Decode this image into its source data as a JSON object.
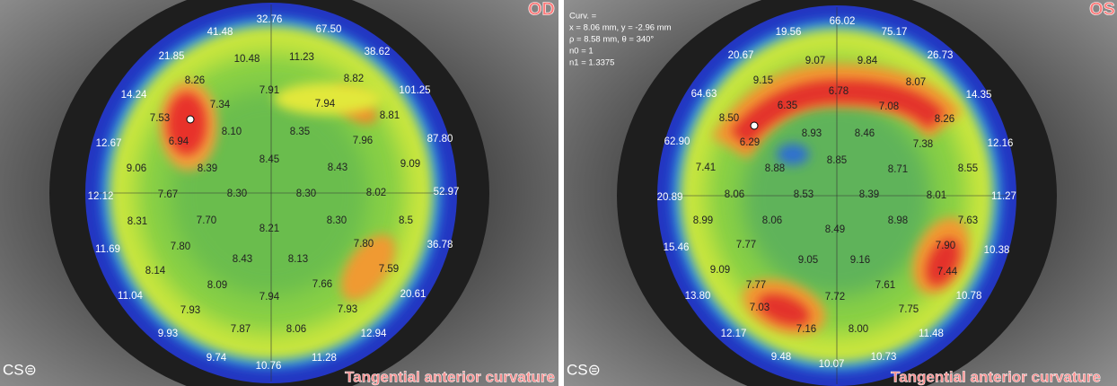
{
  "panels": [
    {
      "eye": "OD",
      "caption": "Tangential anterior curvature",
      "logo": "CS⊜",
      "values": [
        "32.76",
        "67.50",
        "41.48",
        "38.62",
        "21.85",
        "101.25",
        "14.24",
        "87.80",
        "12.67",
        "52.97",
        "12.12",
        "36.78",
        "11.69",
        "20.61",
        "11.04",
        "12.94",
        "9.93",
        "11.28",
        "9.74",
        "10.76",
        "10.48",
        "11.23",
        "8.26",
        "8.82",
        "7.91",
        "7.34",
        "7.94",
        "7.53",
        "8.81",
        "8.10",
        "8.35",
        "7.96",
        "6.94",
        "8.45",
        "9.06",
        "8.39",
        "8.43",
        "9.09",
        "7.67",
        "8.30",
        "8.30",
        "8.02",
        "8.31",
        "7.70",
        "8.21",
        "8.30",
        "8.5",
        "7.80",
        "7.80",
        "8.43",
        "8.13",
        "8.14",
        "7.59",
        "8.09",
        "7.66",
        "7.94",
        "7.93",
        "7.93",
        "7.87",
        "8.06"
      ]
    },
    {
      "eye": "OS",
      "caption": "Tangential anterior curvature",
      "logo": "CS⊜",
      "info": [
        "Curv. =",
        "x = 8.06 mm, y = -2.96 mm",
        "ρ = 8.58 mm, θ = 340°",
        "n0 = 1",
        "n1 = 1.3375"
      ],
      "values": [
        "66.02",
        "19.56",
        "75.17",
        "20.67",
        "26.73",
        "64.63",
        "14.35",
        "62.90",
        "12.16",
        "20.89",
        "11.27",
        "15.46",
        "10.38",
        "13.80",
        "10.78",
        "12.17",
        "11.48",
        "9.48",
        "10.73",
        "10.07",
        "9.07",
        "9.84",
        "9.15",
        "8.07",
        "6.35",
        "6.78",
        "7.08",
        "8.50",
        "8.26",
        "8.93",
        "8.46",
        "6.29",
        "7.38",
        "8.88",
        "8.85",
        "8.71",
        "7.41",
        "8.55",
        "8.06",
        "8.53",
        "8.39",
        "8.01",
        "8.99",
        "8.06",
        "8.98",
        "7.63",
        "8.49",
        "7.77",
        "7.90",
        "9.09",
        "9.05",
        "9.16",
        "7.44",
        "7.77",
        "7.61",
        "7.72",
        "7.03",
        "7.75",
        "7.16",
        "8.00"
      ]
    }
  ]
}
